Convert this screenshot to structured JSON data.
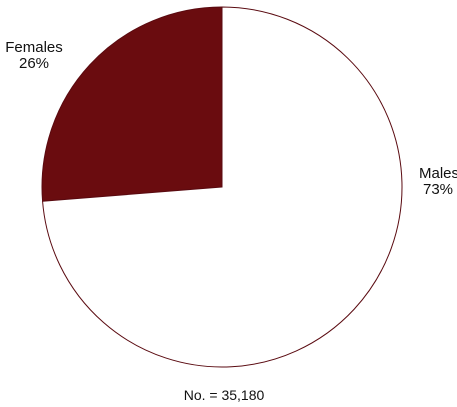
{
  "chart_data": {
    "type": "pie",
    "slices": [
      {
        "label": "Females",
        "percent_label": "26%",
        "value": 26,
        "color": "#6a0c0f"
      },
      {
        "label": "Males",
        "percent_label": "73%",
        "value": 73,
        "color": "#ffffff"
      }
    ],
    "start_angle_deg": 0,
    "direction": "counterclockwise",
    "outline_color": "#5a0a10",
    "note": "No. = 35,180"
  }
}
